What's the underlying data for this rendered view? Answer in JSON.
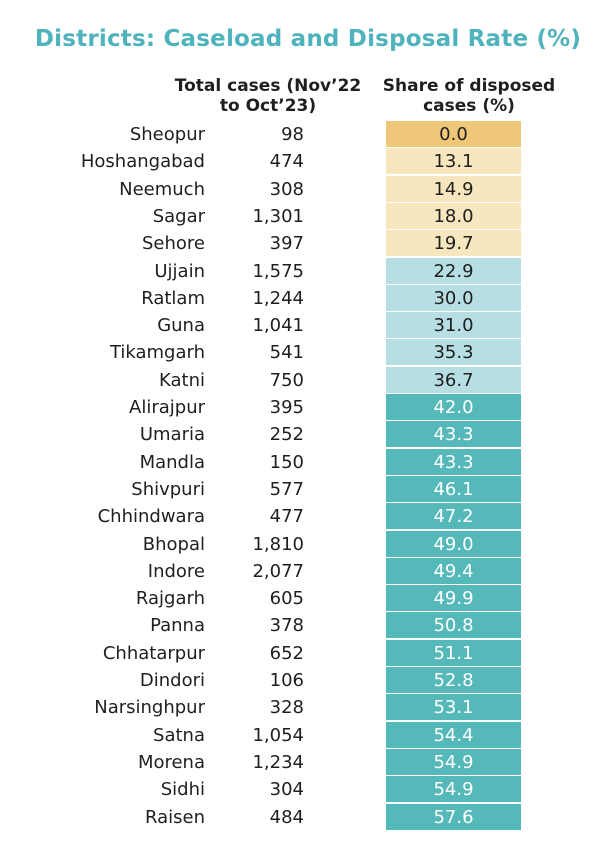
{
  "title": "Districts: Caseload and Disposal Rate (%)",
  "headers": {
    "total_line1": "Total cases (Nov’22",
    "total_line2": "to Oct’23)",
    "share_line1": "Share of disposed",
    "share_line2": "cases (%)"
  },
  "colors": {
    "title": "#4fb3bd",
    "band_top": "#efc779",
    "band_low": "#f8e6be",
    "band_mid": "#b7dfe3",
    "band_high": "#55b8b9",
    "band_top_text": "#1f1f1f",
    "band_high_text": "#ffffff"
  },
  "chart_data": {
    "type": "table",
    "title": "Districts: Caseload and Disposal Rate (%)",
    "columns": [
      "",
      "Total cases (Nov’22 to Oct’23)",
      "Share of disposed cases (%)"
    ],
    "rows": [
      {
        "district": "Sheopur",
        "total": "98",
        "share": "0.0"
      },
      {
        "district": "Hoshangabad",
        "total": "474",
        "share": "13.1"
      },
      {
        "district": "Neemuch",
        "total": "308",
        "share": "14.9"
      },
      {
        "district": "Sagar",
        "total": "1,301",
        "share": "18.0"
      },
      {
        "district": "Sehore",
        "total": "397",
        "share": "19.7"
      },
      {
        "district": "Ujjain",
        "total": "1,575",
        "share": "22.9"
      },
      {
        "district": "Ratlam",
        "total": "1,244",
        "share": "30.0"
      },
      {
        "district": "Guna",
        "total": "1,041",
        "share": "31.0"
      },
      {
        "district": "Tikamgarh",
        "total": "541",
        "share": "35.3"
      },
      {
        "district": "Katni",
        "total": "750",
        "share": "36.7"
      },
      {
        "district": "Alirajpur",
        "total": "395",
        "share": "42.0"
      },
      {
        "district": "Umaria",
        "total": "252",
        "share": "43.3"
      },
      {
        "district": "Mandla",
        "total": "150",
        "share": "43.3"
      },
      {
        "district": "Shivpuri",
        "total": "577",
        "share": "46.1"
      },
      {
        "district": "Chhindwara",
        "total": "477",
        "share": "47.2"
      },
      {
        "district": "Bhopal",
        "total": "1,810",
        "share": "49.0"
      },
      {
        "district": "Indore",
        "total": "2,077",
        "share": "49.4"
      },
      {
        "district": "Rajgarh",
        "total": "605",
        "share": "49.9"
      },
      {
        "district": "Panna",
        "total": "378",
        "share": "50.8"
      },
      {
        "district": "Chhatarpur",
        "total": "652",
        "share": "51.1"
      },
      {
        "district": "Dindori",
        "total": "106",
        "share": "52.8"
      },
      {
        "district": "Narsinghpur",
        "total": "328",
        "share": "53.1"
      },
      {
        "district": "Satna",
        "total": "1,054",
        "share": "54.4"
      },
      {
        "district": "Morena",
        "total": "1,234",
        "share": "54.9"
      },
      {
        "district": "Sidhi",
        "total": "304",
        "share": "54.9"
      },
      {
        "district": "Raisen",
        "total": "484",
        "share": "57.6"
      }
    ]
  }
}
